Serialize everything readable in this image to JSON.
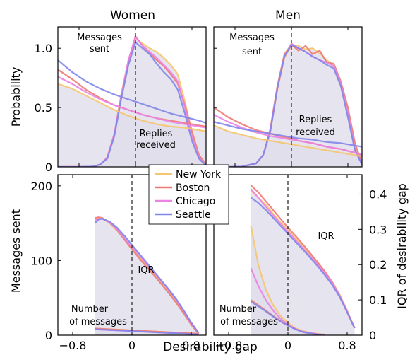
{
  "figure": {
    "xlabel": "Desirability gap",
    "legend": {
      "placement": "center",
      "entries": [
        {
          "name": "New York",
          "color": "#f5c56f"
        },
        {
          "name": "Boston",
          "color": "#ef7a72"
        },
        {
          "name": "Chicago",
          "color": "#ea83e6"
        },
        {
          "name": "Seattle",
          "color": "#8285ea"
        }
      ]
    },
    "fill_color": "#dddcea"
  },
  "chart_data": [
    {
      "type": "line",
      "title": "Women",
      "ylabel": "Probability",
      "xlim": [
        -1.1,
        1.0
      ],
      "ylim": [
        0,
        1.18
      ],
      "yticks": [
        "0",
        "0.5",
        "1.0"
      ],
      "annotations": [
        "Messages sent",
        "Replies received"
      ],
      "series_groups": [
        {
          "group": "Messages sent",
          "x": [
            -1.1,
            -0.8,
            -0.6,
            -0.5,
            -0.4,
            -0.3,
            -0.2,
            -0.1,
            0.0,
            0.1,
            0.2,
            0.3,
            0.4,
            0.5,
            0.6,
            0.7,
            0.8,
            0.9,
            1.0
          ],
          "series": [
            {
              "name": "New York",
              "values": [
                0.0,
                0.0,
                0.003,
                0.02,
                0.08,
                0.28,
                0.62,
                0.9,
                1.08,
                1.04,
                1.0,
                0.97,
                0.92,
                0.86,
                0.78,
                0.55,
                0.28,
                0.08,
                0.01
              ]
            },
            {
              "name": "Boston",
              "values": [
                0.0,
                0.0,
                0.003,
                0.02,
                0.08,
                0.27,
                0.6,
                0.88,
                1.1,
                1.02,
                0.96,
                0.9,
                0.85,
                0.78,
                0.7,
                0.52,
                0.3,
                0.1,
                0.02
              ]
            },
            {
              "name": "Chicago",
              "values": [
                0.0,
                0.0,
                0.003,
                0.02,
                0.08,
                0.28,
                0.6,
                0.9,
                1.1,
                1.02,
                0.97,
                0.92,
                0.86,
                0.8,
                0.72,
                0.5,
                0.25,
                0.08,
                0.01
              ]
            },
            {
              "name": "Seattle",
              "values": [
                0.0,
                0.0,
                0.003,
                0.02,
                0.07,
                0.26,
                0.58,
                0.86,
                1.05,
                1.0,
                0.95,
                0.87,
                0.8,
                0.74,
                0.65,
                0.45,
                0.22,
                0.07,
                0.01
              ]
            }
          ]
        },
        {
          "group": "Replies received",
          "x": [
            -1.1,
            -0.9,
            -0.7,
            -0.5,
            -0.3,
            -0.1,
            0.0,
            0.1,
            0.3,
            0.5,
            0.7,
            0.9,
            1.0
          ],
          "series": [
            {
              "name": "New York",
              "values": [
                0.7,
                0.66,
                0.6,
                0.54,
                0.48,
                0.43,
                0.41,
                0.39,
                0.36,
                0.34,
                0.33,
                0.31,
                0.3
              ]
            },
            {
              "name": "Boston",
              "values": [
                0.82,
                0.74,
                0.65,
                0.58,
                0.52,
                0.48,
                0.46,
                0.44,
                0.41,
                0.39,
                0.37,
                0.35,
                0.34
              ]
            },
            {
              "name": "Chicago",
              "values": [
                0.76,
                0.7,
                0.63,
                0.57,
                0.52,
                0.48,
                0.46,
                0.44,
                0.41,
                0.38,
                0.36,
                0.34,
                0.33
              ]
            },
            {
              "name": "Seattle",
              "values": [
                0.9,
                0.8,
                0.72,
                0.66,
                0.61,
                0.57,
                0.55,
                0.53,
                0.49,
                0.45,
                0.42,
                0.39,
                0.37
              ]
            }
          ]
        }
      ]
    },
    {
      "type": "line",
      "title": "Men",
      "xlim": [
        -1.1,
        1.0
      ],
      "ylim": [
        0,
        1.18
      ],
      "annotations": [
        "Messages sent",
        "Replies received"
      ],
      "series_groups": [
        {
          "group": "Messages sent",
          "x": [
            -1.1,
            -0.9,
            -0.7,
            -0.5,
            -0.4,
            -0.3,
            -0.2,
            -0.1,
            0.0,
            0.1,
            0.2,
            0.3,
            0.4,
            0.5,
            0.6,
            0.7,
            0.8,
            0.9,
            1.0
          ],
          "series": [
            {
              "name": "New York",
              "values": [
                0.0,
                0.0,
                0.003,
                0.03,
                0.1,
                0.3,
                0.65,
                0.92,
                1.02,
                1.02,
                0.99,
                1.0,
                0.96,
                0.9,
                0.85,
                0.7,
                0.45,
                0.16,
                0.02
              ]
            },
            {
              "name": "Boston",
              "values": [
                0.0,
                0.0,
                0.003,
                0.03,
                0.1,
                0.32,
                0.68,
                0.95,
                1.03,
                0.98,
                1.02,
                0.95,
                0.98,
                0.88,
                0.87,
                0.72,
                0.5,
                0.2,
                0.03
              ]
            },
            {
              "name": "Chicago",
              "values": [
                0.0,
                0.0,
                0.003,
                0.03,
                0.1,
                0.3,
                0.66,
                0.93,
                1.04,
                1.0,
                0.97,
                0.93,
                0.9,
                0.88,
                0.85,
                0.7,
                0.45,
                0.15,
                0.02
              ]
            },
            {
              "name": "Seattle",
              "values": [
                0.0,
                0.0,
                0.003,
                0.03,
                0.1,
                0.3,
                0.66,
                0.93,
                1.03,
                1.0,
                0.97,
                0.93,
                0.9,
                0.86,
                0.83,
                0.68,
                0.42,
                0.14,
                0.02
              ]
            }
          ]
        },
        {
          "group": "Replies received",
          "x": [
            -1.1,
            -0.9,
            -0.7,
            -0.5,
            -0.3,
            -0.1,
            0.0,
            0.1,
            0.3,
            0.5,
            0.7,
            0.9,
            1.0
          ],
          "series": [
            {
              "name": "New York",
              "values": [
                0.35,
                0.3,
                0.27,
                0.24,
                0.22,
                0.2,
                0.19,
                0.18,
                0.16,
                0.14,
                0.12,
                0.1,
                0.09
              ]
            },
            {
              "name": "Boston",
              "values": [
                0.5,
                0.42,
                0.36,
                0.31,
                0.28,
                0.25,
                0.24,
                0.22,
                0.2,
                0.17,
                0.15,
                0.12,
                0.1
              ]
            },
            {
              "name": "Chicago",
              "values": [
                0.44,
                0.38,
                0.33,
                0.29,
                0.26,
                0.24,
                0.23,
                0.22,
                0.2,
                0.17,
                0.15,
                0.12,
                0.1
              ]
            },
            {
              "name": "Seattle",
              "values": [
                0.38,
                0.35,
                0.32,
                0.3,
                0.28,
                0.26,
                0.25,
                0.24,
                0.23,
                0.21,
                0.2,
                0.18,
                0.17
              ]
            }
          ]
        }
      ]
    },
    {
      "type": "line",
      "ylabel": "Messages sent",
      "xlim": [
        -1.0,
        1.0
      ],
      "ylim": [
        0,
        215
      ],
      "xticks": [
        "−0.8",
        "0",
        "0.8"
      ],
      "yticks": [
        "0",
        "100",
        "200"
      ],
      "annotations": [
        "IQR",
        "Number of messages"
      ],
      "series_groups": [
        {
          "group": "IQR",
          "x": [
            -0.5,
            -0.45,
            -0.4,
            -0.3,
            -0.2,
            -0.1,
            0.0,
            0.1,
            0.2,
            0.3,
            0.4,
            0.5,
            0.6,
            0.7,
            0.8,
            0.9
          ],
          "series": [
            {
              "name": "New York",
              "values": [
                155,
                157,
                156,
                150,
                140,
                128,
                116,
                105,
                93,
                82,
                70,
                58,
                45,
                30,
                15,
                3
              ]
            },
            {
              "name": "Boston",
              "values": [
                157,
                158,
                157,
                151,
                141,
                128,
                115,
                103,
                91,
                80,
                68,
                56,
                43,
                29,
                14,
                2
              ]
            },
            {
              "name": "Chicago",
              "values": [
                153,
                156,
                156,
                151,
                142,
                130,
                118,
                107,
                95,
                84,
                72,
                60,
                47,
                32,
                16,
                3
              ]
            },
            {
              "name": "Seattle",
              "values": [
                150,
                155,
                156,
                152,
                144,
                133,
                121,
                109,
                97,
                85,
                73,
                61,
                48,
                33,
                17,
                3
              ]
            }
          ]
        },
        {
          "group": "Number of messages",
          "x": [
            -0.5,
            -0.3,
            -0.1,
            0.1,
            0.3,
            0.5,
            0.7,
            0.9
          ],
          "series": [
            {
              "name": "New York",
              "values": [
                9,
                8,
                7,
                6,
                5,
                4,
                3,
                2
              ]
            },
            {
              "name": "Boston",
              "values": [
                9,
                8,
                7,
                6,
                5,
                4,
                3,
                2
              ]
            },
            {
              "name": "Chicago",
              "values": [
                8,
                7,
                6,
                5,
                4,
                3,
                2,
                1
              ]
            },
            {
              "name": "Seattle",
              "values": [
                8,
                7,
                6,
                5,
                4,
                3,
                2,
                1
              ]
            }
          ]
        }
      ]
    },
    {
      "type": "line",
      "ylabel": "IQR of desirability gap",
      "xlim": [
        -1.0,
        1.0
      ],
      "ylim": [
        0,
        0.455
      ],
      "xticks": [
        "−0.8",
        "0",
        "0.8"
      ],
      "yticks": [
        "0",
        "0.1",
        "0.2",
        "0.3",
        "0.4"
      ],
      "annotations": [
        "IQR",
        "Number of messages"
      ],
      "series_groups": [
        {
          "group": "IQR",
          "x": [
            -0.5,
            -0.4,
            -0.3,
            -0.2,
            -0.1,
            0.0,
            0.1,
            0.2,
            0.3,
            0.4,
            0.5,
            0.6,
            0.7,
            0.8,
            0.9
          ],
          "series": [
            {
              "name": "New York",
              "values": [
                0.41,
                0.39,
                0.37,
                0.345,
                0.32,
                0.298,
                0.275,
                0.252,
                0.23,
                0.205,
                0.18,
                0.15,
                0.115,
                0.07,
                0.02
              ]
            },
            {
              "name": "Boston",
              "values": [
                0.425,
                0.405,
                0.38,
                0.355,
                0.33,
                0.305,
                0.282,
                0.258,
                0.233,
                0.207,
                0.18,
                0.15,
                0.11,
                0.065,
                0.02
              ]
            },
            {
              "name": "Chicago",
              "values": [
                0.415,
                0.39,
                0.365,
                0.34,
                0.316,
                0.293,
                0.27,
                0.247,
                0.224,
                0.2,
                0.175,
                0.148,
                0.112,
                0.068,
                0.02
              ]
            },
            {
              "name": "Seattle",
              "values": [
                0.39,
                0.375,
                0.355,
                0.333,
                0.31,
                0.288,
                0.265,
                0.243,
                0.22,
                0.196,
                0.17,
                0.142,
                0.108,
                0.065,
                0.02
              ]
            }
          ]
        },
        {
          "group": "Number of messages",
          "x": [
            -0.5,
            -0.4,
            -0.3,
            -0.2,
            -0.1,
            0.0,
            0.1,
            0.2,
            0.3,
            0.4,
            0.5
          ],
          "series": [
            {
              "name": "New York",
              "values": [
                0.31,
                0.2,
                0.13,
                0.085,
                0.055,
                0.035,
                0.02,
                0.012,
                0.007,
                0.004,
                0.002
              ]
            },
            {
              "name": "Boston",
              "values": [
                0.1,
                0.085,
                0.07,
                0.055,
                0.04,
                0.028,
                0.018,
                0.01,
                0.006,
                0.003,
                0.001
              ]
            },
            {
              "name": "Chicago",
              "values": [
                0.19,
                0.14,
                0.1,
                0.07,
                0.047,
                0.03,
                0.018,
                0.01,
                0.006,
                0.003,
                0.001
              ]
            },
            {
              "name": "Seattle",
              "values": [
                0.095,
                0.082,
                0.068,
                0.053,
                0.039,
                0.027,
                0.017,
                0.009,
                0.005,
                0.002,
                0.001
              ]
            }
          ]
        }
      ]
    }
  ]
}
